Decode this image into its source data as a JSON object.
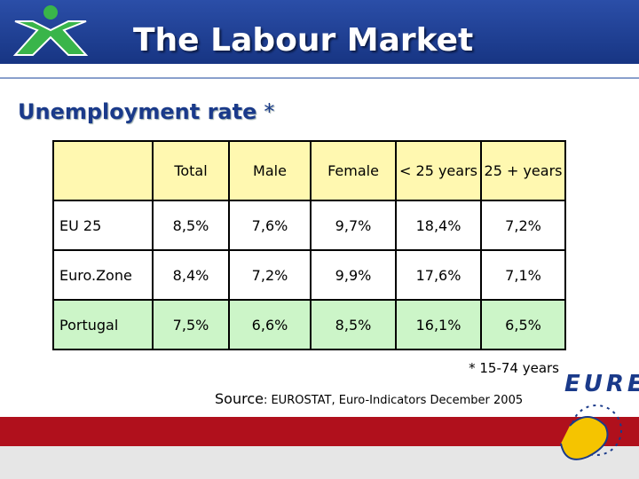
{
  "header": {
    "title": "The Labour Market"
  },
  "subtitle": {
    "text": "Unemployment rate",
    "note_mark": "*"
  },
  "table": {
    "columns": [
      "Total",
      "Male",
      "Female",
      "< 25 years",
      "25 + years"
    ],
    "rows": [
      [
        "EU 25",
        "8,5%",
        "7,6%",
        "9,7%",
        "18,4%",
        "7,2%"
      ],
      [
        "Euro.Zone",
        "8,4%",
        "7,2%",
        "9,9%",
        "17,6%",
        "7,1%"
      ],
      [
        "Portugal",
        "7,5%",
        "6,6%",
        "8,5%",
        "16,1%",
        "6,5%"
      ]
    ]
  },
  "footnote": "* 15-74 years",
  "source": {
    "label": "Source",
    "text": ": EUROSTAT, Euro-Indicators December 2005"
  },
  "logo": {
    "text": "EURES"
  }
}
